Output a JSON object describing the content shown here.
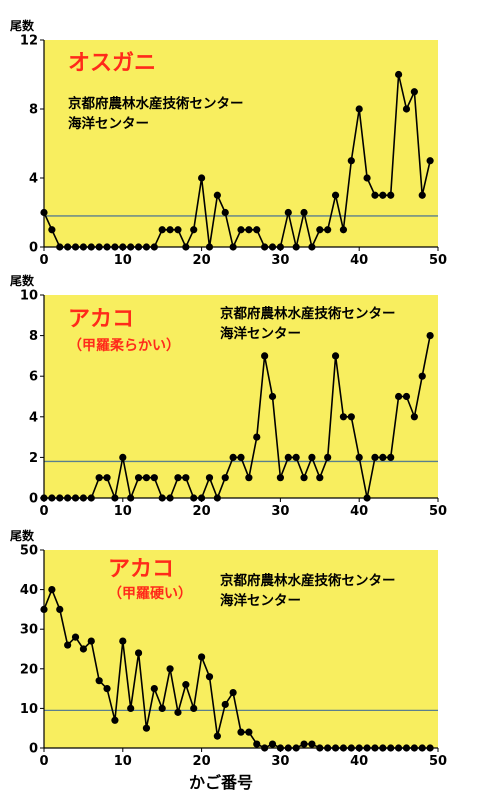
{
  "chart_data": [
    {
      "type": "line",
      "title": "オスガニ",
      "annotation": [
        "京都府農林水産技術センター",
        "海洋センター"
      ],
      "ylabel": "尾数",
      "xlabel": "",
      "xlim": [
        0,
        50
      ],
      "ylim": [
        0,
        12
      ],
      "xticks": [
        "0",
        "10",
        "20",
        "30",
        "40",
        "50"
      ],
      "yticks": [
        "0",
        "4",
        "8",
        "12"
      ],
      "reference_line": 1.8,
      "x": [
        0,
        1,
        2,
        3,
        4,
        5,
        6,
        7,
        8,
        9,
        10,
        11,
        12,
        13,
        14,
        15,
        16,
        17,
        18,
        19,
        20,
        21,
        22,
        23,
        24,
        25,
        26,
        27,
        28,
        29,
        30,
        31,
        32,
        33,
        34,
        35,
        36,
        37,
        38,
        39,
        40,
        41,
        42,
        43,
        44,
        45,
        46,
        47,
        48,
        49
      ],
      "values": [
        2,
        1,
        0,
        0,
        0,
        0,
        0,
        0,
        0,
        0,
        0,
        0,
        0,
        0,
        0,
        1,
        1,
        1,
        0,
        1,
        4,
        0,
        3,
        2,
        0,
        1,
        1,
        1,
        0,
        0,
        0,
        2,
        0,
        2,
        0,
        1,
        1,
        3,
        1,
        5,
        8,
        4,
        3,
        3,
        3,
        10,
        8,
        9,
        3,
        5
      ]
    },
    {
      "type": "line",
      "title": "アカコ",
      "subtitle": "（甲羅柔らかい）",
      "annotation": [
        "京都府農林水産技術センター",
        "海洋センター"
      ],
      "ylabel": "尾数",
      "xlabel": "",
      "xlim": [
        0,
        50
      ],
      "ylim": [
        0,
        10
      ],
      "xticks": [
        "0",
        "10",
        "20",
        "30",
        "40",
        "50"
      ],
      "yticks": [
        "0",
        "2",
        "4",
        "6",
        "8",
        "10"
      ],
      "reference_line": 1.8,
      "x": [
        0,
        1,
        2,
        3,
        4,
        5,
        6,
        7,
        8,
        9,
        10,
        11,
        12,
        13,
        14,
        15,
        16,
        17,
        18,
        19,
        20,
        21,
        22,
        23,
        24,
        25,
        26,
        27,
        28,
        29,
        30,
        31,
        32,
        33,
        34,
        35,
        36,
        37,
        38,
        39,
        40,
        41,
        42,
        43,
        44,
        45,
        46,
        47,
        48,
        49
      ],
      "values": [
        0,
        0,
        0,
        0,
        0,
        0,
        0,
        1,
        1,
        0,
        2,
        0,
        1,
        1,
        1,
        0,
        0,
        1,
        1,
        0,
        0,
        1,
        0,
        1,
        2,
        2,
        1,
        3,
        7,
        5,
        1,
        2,
        2,
        1,
        2,
        1,
        2,
        7,
        4,
        4,
        2,
        0,
        2,
        2,
        2,
        5,
        5,
        4,
        6,
        8
      ]
    },
    {
      "type": "line",
      "title": "アカコ",
      "subtitle": "（甲羅硬い）",
      "annotation": [
        "京都府農林水産技術センター",
        "海洋センター"
      ],
      "ylabel": "尾数",
      "xlabel": "かご番号",
      "xlim": [
        0,
        50
      ],
      "ylim": [
        0,
        50
      ],
      "xticks": [
        "0",
        "10",
        "20",
        "30",
        "40",
        "50"
      ],
      "yticks": [
        "0",
        "10",
        "20",
        "30",
        "40",
        "50"
      ],
      "reference_line": 9.5,
      "x": [
        0,
        1,
        2,
        3,
        4,
        5,
        6,
        7,
        8,
        9,
        10,
        11,
        12,
        13,
        14,
        15,
        16,
        17,
        18,
        19,
        20,
        21,
        22,
        23,
        24,
        25,
        26,
        27,
        28,
        29,
        30,
        31,
        32,
        33,
        34,
        35,
        36,
        37,
        38,
        39,
        40,
        41,
        42,
        43,
        44,
        45,
        46,
        47,
        48,
        49
      ],
      "values": [
        35,
        40,
        35,
        26,
        28,
        25,
        27,
        17,
        15,
        7,
        27,
        10,
        24,
        5,
        15,
        10,
        20,
        9,
        16,
        10,
        23,
        18,
        3,
        11,
        14,
        4,
        4,
        1,
        0,
        1,
        0,
        0,
        0,
        1,
        1,
        0,
        0,
        0,
        0,
        0,
        0,
        0,
        0,
        0,
        0,
        0,
        0,
        0,
        0,
        0
      ]
    }
  ],
  "colors": {
    "panel_bg": "#f8ee5f",
    "title": "#ff2a1a",
    "line": "#000000",
    "reference": "#5a7f8e",
    "axis": "#000000"
  }
}
